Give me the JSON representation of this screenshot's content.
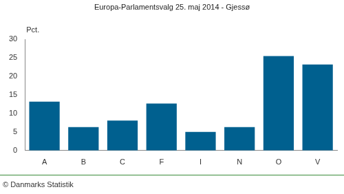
{
  "chart_data": {
    "type": "bar",
    "title": "Europa-Parlamentsvalg 25. maj 2014 - Gjessø",
    "y_label": "Pct.",
    "source": "© Danmarks Statistik",
    "categories": [
      "A",
      "B",
      "C",
      "F",
      "I",
      "N",
      "O",
      "V"
    ],
    "values": [
      13.2,
      6.3,
      8.1,
      12.7,
      5.0,
      6.3,
      25.5,
      23.2
    ],
    "color": "#00608f",
    "ylim": [
      0,
      30
    ],
    "yticks": [
      0,
      5,
      10,
      15,
      20,
      25,
      30
    ],
    "grid": false
  }
}
